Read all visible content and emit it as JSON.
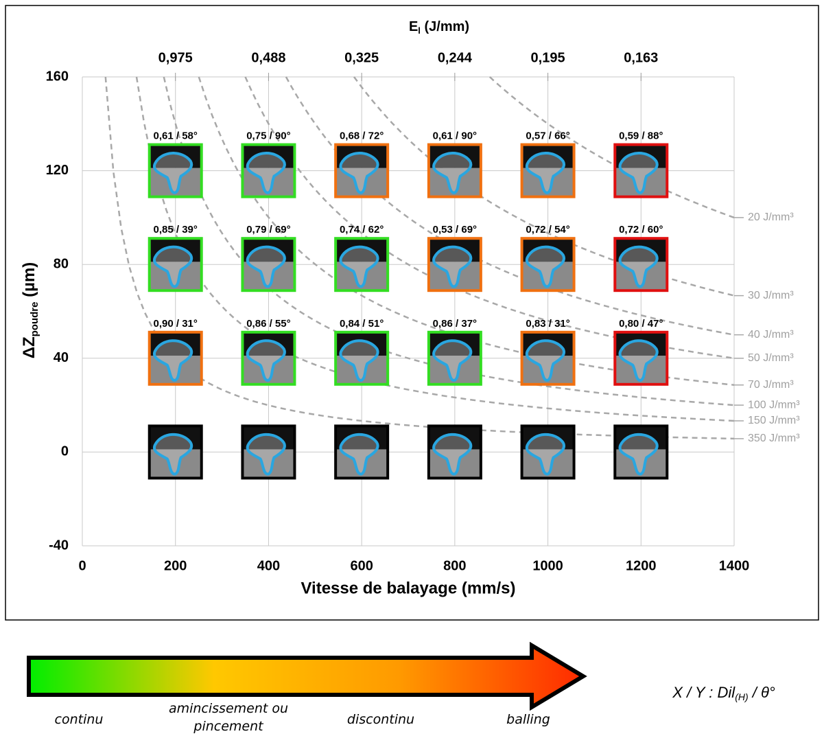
{
  "chart_data": {
    "type": "scatter",
    "top_axis_title": {
      "main": "E",
      "sub": "l",
      "unit": " (J/mm)"
    },
    "top_ticks": [
      {
        "value": 200,
        "label": "0,975"
      },
      {
        "value": 400,
        "label": "0,488"
      },
      {
        "value": 600,
        "label": "0,325"
      },
      {
        "value": 800,
        "label": "0,244"
      },
      {
        "value": 1000,
        "label": "0,195"
      },
      {
        "value": 1200,
        "label": "0,163"
      }
    ],
    "x_label": "Vitesse de balayage (mm/s)",
    "y_label": {
      "main": "ΔZ",
      "sub": "poudre",
      "unit": " (µm)"
    },
    "xlim": [
      0,
      1400
    ],
    "xticks": [
      0,
      200,
      400,
      600,
      800,
      1000,
      1200,
      1400
    ],
    "ylim": [
      -40,
      160
    ],
    "yticks": [
      -40,
      0,
      40,
      80,
      120,
      160
    ],
    "grid": true,
    "series": [
      {
        "color": "#33dd22",
        "x": [
          200,
          400,
          200,
          400,
          600,
          400,
          600,
          800
        ],
        "y": [
          120,
          120,
          80,
          80,
          80,
          40,
          40,
          40
        ],
        "labels": [
          "0,61 / 58°",
          "0,75 / 90°",
          "0,85 / 39°",
          "0,79 / 69°",
          "0,74 / 62°",
          "0,86 / 55°",
          "0,84 / 51°",
          "0,86 / 37°"
        ]
      },
      {
        "color": "#f07010",
        "x": [
          600,
          800,
          1000,
          800,
          1000,
          200,
          1000
        ],
        "y": [
          120,
          120,
          120,
          80,
          80,
          40,
          40
        ],
        "labels": [
          "0,68 / 72°",
          "0,61 / 90°",
          "0,57 / 66°",
          "0,53 / 69°",
          "0,72 / 54°",
          "0,90 / 31°",
          "0,83 / 31°"
        ]
      },
      {
        "color": "#e01010",
        "x": [
          1200,
          1200,
          1200
        ],
        "y": [
          120,
          80,
          40
        ],
        "labels": [
          "0,59 / 88°",
          "0,72 / 60°",
          "0,80 / 47°"
        ]
      },
      {
        "color": "#000000",
        "x": [
          200,
          400,
          600,
          800,
          1000,
          1200
        ],
        "y": [
          0,
          0,
          0,
          0,
          0,
          0
        ]
      }
    ],
    "iso_energy": [
      {
        "label": "20 J/mm³",
        "y_end": 100
      },
      {
        "label": "30 J/mm³",
        "y_end": 66.7
      },
      {
        "label": "40 J/mm³",
        "y_end": 50
      },
      {
        "label": "50 J/mm³",
        "y_end": 40
      },
      {
        "label": "70 J/mm³",
        "y_end": 28.6
      },
      {
        "label": "100 J/mm³",
        "y_end": 20
      },
      {
        "label": "150 J/mm³",
        "y_end": 13.3
      },
      {
        "label": "350 J/mm³",
        "y_end": 5.7
      }
    ],
    "legend": {
      "colors": [
        "#00ee00",
        "#ffc800",
        "#ff9a00",
        "#ff2a00"
      ],
      "items": [
        "continu",
        "amincissement ou pincement",
        "discontinu",
        "balling"
      ]
    },
    "annotation": {
      "main": "X / Y : Dil",
      "sub": "(H)",
      "end": " / θ°"
    }
  }
}
